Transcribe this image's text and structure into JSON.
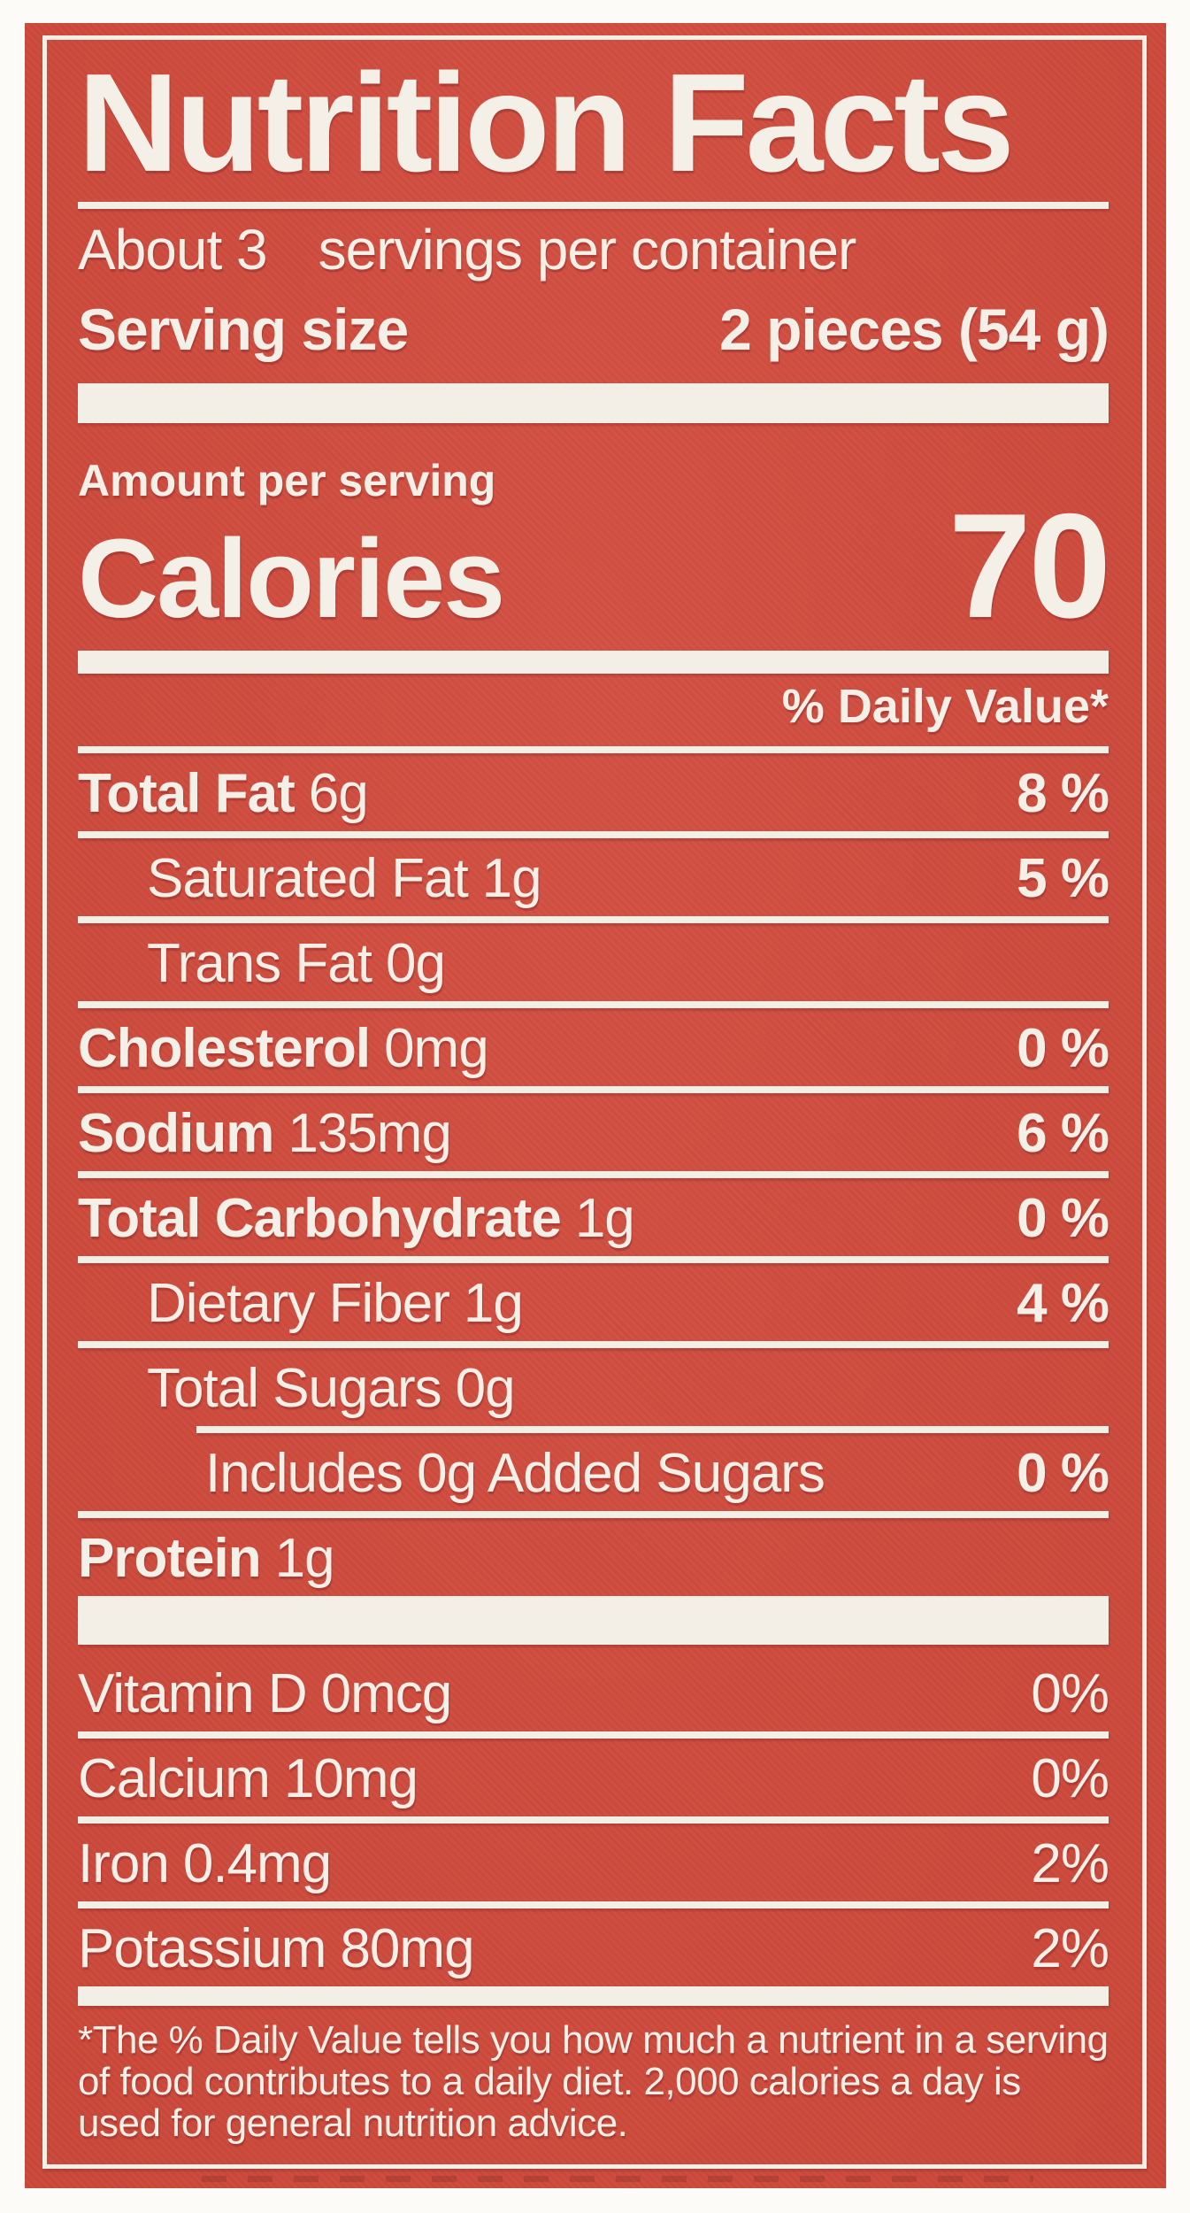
{
  "label": {
    "title": "Nutrition Facts",
    "servings_prefix": "About 3",
    "servings_suffix": "servings per container",
    "serving_size_label": "Serving size",
    "serving_size_value": "2 pieces (54 g)",
    "amount_per_serving": "Amount per serving",
    "calories_label": "Calories",
    "calories_value": "70",
    "daily_value_header": "% Daily Value*",
    "nutrients": [
      {
        "name": "Total Fat",
        "amount": "6g",
        "dv": "8 %"
      },
      {
        "name": "Saturated Fat",
        "amount": "1g",
        "dv": "5 %"
      },
      {
        "name": "Trans Fat",
        "amount": "0g",
        "dv": ""
      },
      {
        "name": "Cholesterol",
        "amount": "0mg",
        "dv": "0 %"
      },
      {
        "name": "Sodium",
        "amount": "135mg",
        "dv": "6 %"
      },
      {
        "name": "Total Carbohydrate",
        "amount": "1g",
        "dv": "0 %"
      },
      {
        "name": "Dietary Fiber",
        "amount": "1g",
        "dv": "4 %"
      },
      {
        "name": "Total Sugars",
        "amount": "0g",
        "dv": ""
      },
      {
        "name": "Includes 0g Added Sugars",
        "amount": "",
        "dv": "0 %"
      },
      {
        "name": "Protein",
        "amount": "1g",
        "dv": ""
      }
    ],
    "micronutrients": [
      {
        "name": "Vitamin D",
        "amount": "0mcg",
        "dv": "0%"
      },
      {
        "name": "Calcium",
        "amount": "10mg",
        "dv": "0%"
      },
      {
        "name": "Iron",
        "amount": "0.4mg",
        "dv": "2%"
      },
      {
        "name": "Potassium",
        "amount": "80mg",
        "dv": "2%"
      }
    ],
    "footnote": "*The % Daily Value tells you how much a nutrient in a serving of food contributes to a daily diet. 2,000 calories a day is used for general nutrition advice.",
    "colors": {
      "label_red": "#d14a3b",
      "text_offwhite": "#f4f0e7",
      "page_white": "#fcfbf8"
    }
  }
}
